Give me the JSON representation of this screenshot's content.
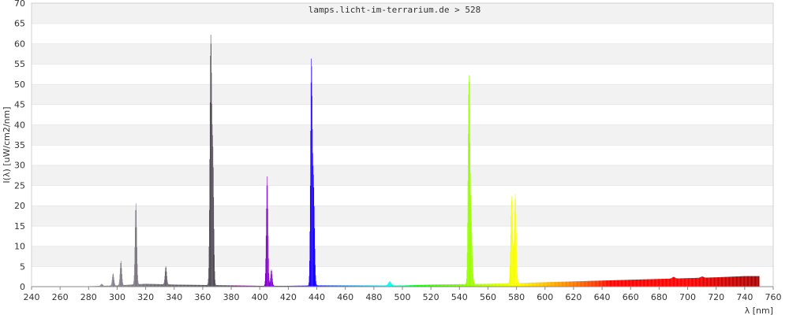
{
  "chart_data": {
    "type": "area",
    "title": "lamps.licht-im-terrarium.de > 528",
    "ylabel": "I(λ)  [uW/cm2/nm]",
    "xlabel": "λ [nm]",
    "xlim": [
      240,
      760
    ],
    "ylim": [
      0,
      70
    ],
    "x_ticks": [
      240,
      260,
      280,
      300,
      320,
      340,
      360,
      380,
      400,
      420,
      440,
      460,
      480,
      500,
      520,
      540,
      560,
      580,
      600,
      620,
      640,
      660,
      680,
      700,
      720,
      740,
      760
    ],
    "y_ticks": [
      0,
      5,
      10,
      15,
      20,
      25,
      30,
      35,
      40,
      45,
      50,
      55,
      60,
      65,
      70
    ],
    "grid": "horizontal alternating bands",
    "fill_by_wavelength_color": true,
    "baseline": [
      {
        "x": 280,
        "y": 0.1
      },
      {
        "x": 300,
        "y": 0.3
      },
      {
        "x": 320,
        "y": 0.7
      },
      {
        "x": 340,
        "y": 0.5
      },
      {
        "x": 360,
        "y": 0.4
      },
      {
        "x": 380,
        "y": 0.3
      },
      {
        "x": 400,
        "y": 0.2
      },
      {
        "x": 420,
        "y": 0.2
      },
      {
        "x": 440,
        "y": 0.3
      },
      {
        "x": 460,
        "y": 0.3
      },
      {
        "x": 480,
        "y": 0.3
      },
      {
        "x": 500,
        "y": 0.3
      },
      {
        "x": 520,
        "y": 0.5
      },
      {
        "x": 540,
        "y": 0.6
      },
      {
        "x": 560,
        "y": 0.7
      },
      {
        "x": 580,
        "y": 0.9
      },
      {
        "x": 600,
        "y": 1.1
      },
      {
        "x": 620,
        "y": 1.3
      },
      {
        "x": 640,
        "y": 1.5
      },
      {
        "x": 660,
        "y": 1.7
      },
      {
        "x": 680,
        "y": 1.9
      },
      {
        "x": 700,
        "y": 2.1
      },
      {
        "x": 720,
        "y": 2.3
      },
      {
        "x": 740,
        "y": 2.6
      },
      {
        "x": 750,
        "y": 2.6
      }
    ],
    "peaks": [
      {
        "x": 289,
        "y": 0.5,
        "w": 0.7
      },
      {
        "x": 297,
        "y": 3.0,
        "w": 0.6
      },
      {
        "x": 302.5,
        "y": 6.0,
        "w": 0.6
      },
      {
        "x": 313,
        "y": 20.0,
        "w": 0.6
      },
      {
        "x": 334,
        "y": 4.5,
        "w": 0.6
      },
      {
        "x": 365.5,
        "y": 60.5,
        "w": 0.65
      },
      {
        "x": 367,
        "y": 30.0,
        "w": 0.6
      },
      {
        "x": 405,
        "y": 27.0,
        "w": 0.6
      },
      {
        "x": 408,
        "y": 4.0,
        "w": 0.6
      },
      {
        "x": 436,
        "y": 53.5,
        "w": 0.6
      },
      {
        "x": 437.5,
        "y": 25.0,
        "w": 0.7
      },
      {
        "x": 491,
        "y": 1.0,
        "w": 1.0
      },
      {
        "x": 546.5,
        "y": 49.0,
        "w": 0.65
      },
      {
        "x": 548,
        "y": 15.0,
        "w": 0.8
      },
      {
        "x": 576.5,
        "y": 21.5,
        "w": 0.7
      },
      {
        "x": 579,
        "y": 22.0,
        "w": 0.7
      },
      {
        "x": 690,
        "y": 0.4,
        "w": 1.0
      },
      {
        "x": 710,
        "y": 0.3,
        "w": 1.0
      }
    ]
  }
}
